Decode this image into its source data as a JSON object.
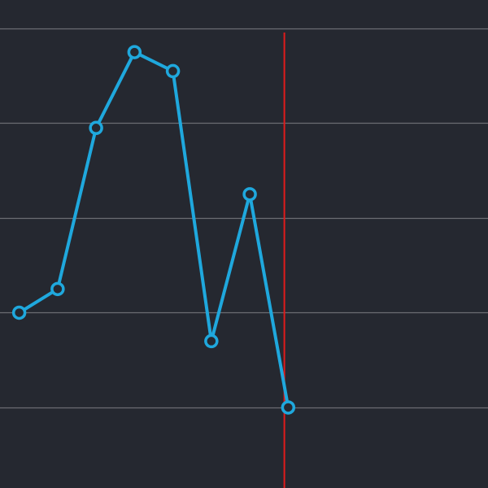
{
  "chart_data": {
    "type": "line",
    "title": "",
    "xlabel": "",
    "ylabel": "",
    "x": [
      1,
      2,
      3,
      4,
      5,
      6,
      7,
      8
    ],
    "series": [
      {
        "values": [
          3.0,
          3.25,
          4.95,
          5.75,
          5.55,
          2.7,
          4.25,
          2.0
        ]
      }
    ],
    "xlim": [
      0.5,
      13.2
    ],
    "ylim": [
      1.15,
      6.3
    ],
    "y_gridlines": [
      2,
      3,
      4,
      5,
      6
    ],
    "marker_line_x": 7.9,
    "grid": true,
    "legend": "none",
    "colors": {
      "background": "#252830",
      "grid": "#6b6d73",
      "series": "#1fa8dd",
      "marker_line": "#e01b1b"
    }
  }
}
